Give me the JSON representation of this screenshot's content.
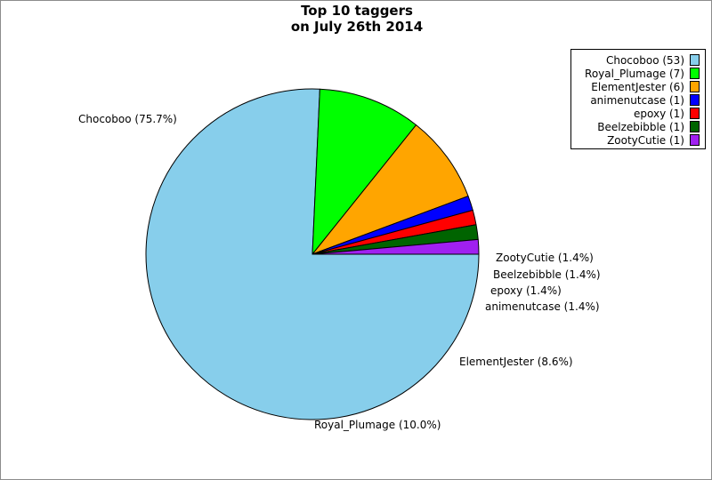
{
  "chart_data": {
    "type": "pie",
    "title_lines": [
      "Top 10 taggers",
      "on July 26th 2014"
    ],
    "start_angle_deg": 0,
    "direction": "clockwise",
    "legend_position": "top-right",
    "slices": [
      {
        "name": "Chocoboo",
        "value": 53,
        "legend": "Chocoboo (53)",
        "label": "Chocoboo (75.7%)",
        "color": "#87ceeb"
      },
      {
        "name": "Royal_Plumage",
        "value": 7,
        "legend": "Royal_Plumage (7)",
        "label": "Royal_Plumage (10.0%)",
        "color": "#00ff00"
      },
      {
        "name": "ElementJester",
        "value": 6,
        "legend": "ElementJester (6)",
        "label": "ElementJester (8.6%)",
        "color": "#ffa500"
      },
      {
        "name": "animenutcase",
        "value": 1,
        "legend": "animenutcase (1)",
        "label": "animenutcase (1.4%)",
        "color": "#0000ff"
      },
      {
        "name": "epoxy",
        "value": 1,
        "legend": "epoxy (1)",
        "label": "epoxy (1.4%)",
        "color": "#ff0000"
      },
      {
        "name": "Beelzebibble",
        "value": 1,
        "legend": "Beelzebibble (1)",
        "label": "Beelzebibble (1.4%)",
        "color": "#006400"
      },
      {
        "name": "ZootyCutie",
        "value": 1,
        "legend": "ZootyCutie (1)",
        "label": "ZootyCutie (1.4%)",
        "color": "#a020f0"
      }
    ]
  }
}
